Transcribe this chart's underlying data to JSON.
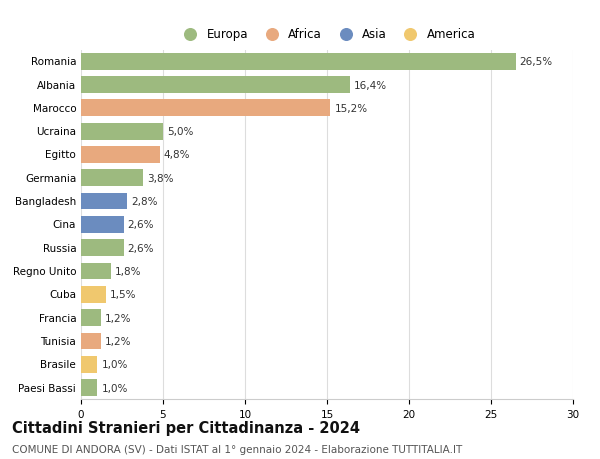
{
  "countries": [
    "Romania",
    "Albania",
    "Marocco",
    "Ucraina",
    "Egitto",
    "Germania",
    "Bangladesh",
    "Cina",
    "Russia",
    "Regno Unito",
    "Cuba",
    "Francia",
    "Tunisia",
    "Brasile",
    "Paesi Bassi"
  ],
  "values": [
    26.5,
    16.4,
    15.2,
    5.0,
    4.8,
    3.8,
    2.8,
    2.6,
    2.6,
    1.8,
    1.5,
    1.2,
    1.2,
    1.0,
    1.0
  ],
  "labels": [
    "26,5%",
    "16,4%",
    "15,2%",
    "5,0%",
    "4,8%",
    "3,8%",
    "2,8%",
    "2,6%",
    "2,6%",
    "1,8%",
    "1,5%",
    "1,2%",
    "1,2%",
    "1,0%",
    "1,0%"
  ],
  "continents": [
    "Europa",
    "Europa",
    "Africa",
    "Europa",
    "Africa",
    "Europa",
    "Asia",
    "Asia",
    "Europa",
    "Europa",
    "America",
    "Europa",
    "Africa",
    "America",
    "Europa"
  ],
  "continent_colors": {
    "Europa": "#9dba7f",
    "Africa": "#e8a97e",
    "Asia": "#6b8cbf",
    "America": "#f0c86e"
  },
  "legend_order": [
    "Europa",
    "Africa",
    "Asia",
    "America"
  ],
  "title": "Cittadini Stranieri per Cittadinanza - 2024",
  "subtitle": "COMUNE DI ANDORA (SV) - Dati ISTAT al 1° gennaio 2024 - Elaborazione TUTTITALIA.IT",
  "xlim": [
    0,
    30
  ],
  "xticks": [
    0,
    5,
    10,
    15,
    20,
    25,
    30
  ],
  "background_color": "#ffffff",
  "grid_color": "#dddddd",
  "bar_height": 0.72,
  "title_fontsize": 10.5,
  "subtitle_fontsize": 7.5,
  "label_fontsize": 7.5,
  "tick_fontsize": 7.5,
  "legend_fontsize": 8.5
}
